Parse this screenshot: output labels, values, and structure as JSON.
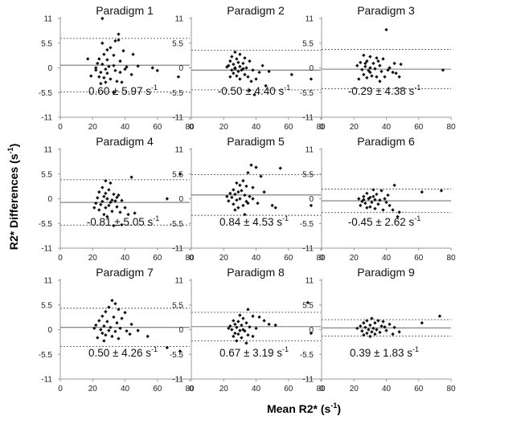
{
  "figure": {
    "ylabel_main": "R2* Differences (s",
    "ylabel_sup": "-1",
    "ylabel_close": ")",
    "xlabel_main": "Mean R2* (s",
    "xlabel_sup": "-1",
    "xlabel_close": ")"
  },
  "chart_data": [
    {
      "type": "scatter",
      "title": "Paradigm 1",
      "annotation": "0.60 ± 5.97 s",
      "annotation_unit_sup": "-1",
      "mean": 0.6,
      "upper": 6.57,
      "lower": -5.37,
      "xlim": [
        0,
        80
      ],
      "ylim": [
        -11,
        11
      ],
      "xticks": [
        "0",
        "20",
        "40",
        "60",
        "80"
      ],
      "yticks": [
        "11",
        "5.5",
        "0",
        "-5.5",
        "-11"
      ],
      "points": [
        [
          26,
          11
        ],
        [
          36,
          7.5
        ],
        [
          34,
          6
        ],
        [
          36,
          6.2
        ],
        [
          26,
          5.5
        ],
        [
          31,
          4.5
        ],
        [
          29,
          4
        ],
        [
          39,
          3.8
        ],
        [
          27,
          3
        ],
        [
          33,
          2.8
        ],
        [
          45,
          3
        ],
        [
          17,
          2
        ],
        [
          24,
          2
        ],
        [
          29,
          1.8
        ],
        [
          37,
          1.5
        ],
        [
          23,
          1
        ],
        [
          26,
          0.8
        ],
        [
          33,
          0.5
        ],
        [
          41,
          0.2
        ],
        [
          48,
          0.4
        ],
        [
          57,
          0
        ],
        [
          22,
          0
        ],
        [
          28,
          -0.3
        ],
        [
          34,
          -0.6
        ],
        [
          25,
          -1
        ],
        [
          29,
          -1.2
        ],
        [
          37,
          -1
        ],
        [
          60,
          -0.6
        ],
        [
          24,
          -2
        ],
        [
          27,
          -2.2
        ],
        [
          31,
          -2.5
        ],
        [
          35,
          -3
        ],
        [
          38,
          -3.2
        ],
        [
          25,
          -3.5
        ],
        [
          28,
          -3.2
        ],
        [
          73,
          -2
        ],
        [
          33,
          -5.5
        ],
        [
          22,
          -0.5
        ],
        [
          30,
          0.3
        ],
        [
          40,
          -0.3
        ],
        [
          44,
          -1.5
        ],
        [
          19,
          -1.8
        ]
      ]
    },
    {
      "type": "scatter",
      "title": "Paradigm 2",
      "annotation": "-0.50 ± 4.40 s",
      "annotation_unit_sup": "-1",
      "mean": -0.5,
      "upper": 3.9,
      "lower": -4.9,
      "xlim": [
        0,
        80
      ],
      "ylim": [
        -11,
        11
      ],
      "xticks": [
        "0",
        "20",
        "40",
        "60",
        "80"
      ],
      "yticks": [
        "11",
        "5.5",
        "0",
        "-5.5",
        "-11"
      ],
      "points": [
        [
          27,
          3.5
        ],
        [
          30,
          3
        ],
        [
          25,
          2.5
        ],
        [
          28,
          2
        ],
        [
          33,
          2.2
        ],
        [
          24,
          1.5
        ],
        [
          29,
          1.2
        ],
        [
          32,
          1
        ],
        [
          36,
          1.5
        ],
        [
          26,
          0.8
        ],
        [
          23,
          0.5
        ],
        [
          30,
          0.3
        ],
        [
          34,
          0
        ],
        [
          27,
          -0.2
        ],
        [
          25,
          -0.5
        ],
        [
          31,
          -0.5
        ],
        [
          29,
          -0.8
        ],
        [
          38,
          -0.5
        ],
        [
          42,
          -1
        ],
        [
          26,
          -1.2
        ],
        [
          33,
          -1.5
        ],
        [
          28,
          -1.8
        ],
        [
          35,
          -2
        ],
        [
          24,
          -2
        ],
        [
          30,
          -2.5
        ],
        [
          40,
          -2.5
        ],
        [
          37,
          -3
        ],
        [
          46,
          -4
        ],
        [
          62,
          -1.5
        ],
        [
          74,
          -2.5
        ],
        [
          39,
          -6
        ],
        [
          36,
          -5
        ],
        [
          27,
          0
        ],
        [
          22,
          0.2
        ],
        [
          32,
          -0.2
        ],
        [
          44,
          0.5
        ],
        [
          48,
          -0.8
        ]
      ]
    },
    {
      "type": "scatter",
      "title": "Paradigm 3",
      "annotation": "-0.29 ± 4.38 s",
      "annotation_unit_sup": "-1",
      "mean": -0.29,
      "upper": 4.09,
      "lower": -4.67,
      "xlim": [
        0,
        80
      ],
      "ylim": [
        -11,
        11
      ],
      "xticks": [
        "0",
        "20",
        "40",
        "60",
        "80"
      ],
      "yticks": [
        "11",
        "5.5",
        "0",
        "-5.5",
        "-11"
      ],
      "points": [
        [
          40,
          8.5
        ],
        [
          26,
          2.8
        ],
        [
          30,
          2.5
        ],
        [
          34,
          2.2
        ],
        [
          38,
          2
        ],
        [
          28,
          1.5
        ],
        [
          24,
          1.2
        ],
        [
          32,
          1
        ],
        [
          45,
          1
        ],
        [
          49,
          0.8
        ],
        [
          36,
          0.5
        ],
        [
          27,
          0.3
        ],
        [
          30,
          0
        ],
        [
          33,
          -0.2
        ],
        [
          25,
          -0.4
        ],
        [
          29,
          -0.6
        ],
        [
          37,
          -0.8
        ],
        [
          41,
          -0.5
        ],
        [
          44,
          -1
        ],
        [
          46,
          -1.2
        ],
        [
          26,
          -1.5
        ],
        [
          31,
          -1.8
        ],
        [
          34,
          -2
        ],
        [
          28,
          -2.2
        ],
        [
          39,
          -2
        ],
        [
          48,
          -2
        ],
        [
          23,
          -2.5
        ],
        [
          36,
          -3
        ],
        [
          75,
          -0.5
        ],
        [
          30,
          -1
        ],
        [
          27,
          1
        ],
        [
          35,
          1.5
        ],
        [
          42,
          0
        ],
        [
          22,
          0.5
        ]
      ]
    },
    {
      "type": "scatter",
      "title": "Paradigm 4",
      "annotation": "-0.81 ± 5.05 s",
      "annotation_unit_sup": "-1",
      "mean": -0.81,
      "upper": 4.24,
      "lower": -5.86,
      "xlim": [
        0,
        80
      ],
      "ylim": [
        -11,
        11
      ],
      "xticks": [
        "0",
        "20",
        "40",
        "60",
        "80"
      ],
      "yticks": [
        "11",
        "5.5",
        "0",
        "-5.5",
        "-11"
      ],
      "points": [
        [
          74,
          5.5
        ],
        [
          44,
          4.8
        ],
        [
          28,
          4
        ],
        [
          31,
          3.5
        ],
        [
          26,
          2.5
        ],
        [
          30,
          2
        ],
        [
          24,
          1.5
        ],
        [
          28,
          1.2
        ],
        [
          33,
          1
        ],
        [
          36,
          0.8
        ],
        [
          27,
          0.5
        ],
        [
          23,
          0.2
        ],
        [
          29,
          0
        ],
        [
          32,
          -0.3
        ],
        [
          34,
          -0.5
        ],
        [
          26,
          -0.6
        ],
        [
          38,
          -0.4
        ],
        [
          66,
          0
        ],
        [
          22,
          -1
        ],
        [
          25,
          -1.3
        ],
        [
          30,
          -1.5
        ],
        [
          35,
          -1.8
        ],
        [
          28,
          -2
        ],
        [
          40,
          -2
        ],
        [
          24,
          -2.5
        ],
        [
          32,
          -2.8
        ],
        [
          37,
          -3
        ],
        [
          27,
          -3.5
        ],
        [
          42,
          -3.5
        ],
        [
          46,
          -3.2
        ],
        [
          33,
          -6
        ],
        [
          38,
          -5.8
        ],
        [
          29,
          -4
        ],
        [
          21,
          -2
        ],
        [
          31,
          -0.8
        ],
        [
          35,
          0.3
        ]
      ]
    },
    {
      "type": "scatter",
      "title": "Paradigm 5",
      "annotation": "0.84 ± 4.53 s",
      "annotation_unit_sup": "-1",
      "mean": 0.84,
      "upper": 5.37,
      "lower": -3.69,
      "xlim": [
        0,
        80
      ],
      "ylim": [
        -11,
        11
      ],
      "xticks": [
        "0",
        "20",
        "40",
        "60",
        "80"
      ],
      "yticks": [
        "11",
        "5.5",
        "0",
        "-5.5",
        "-11"
      ],
      "points": [
        [
          37,
          7.5
        ],
        [
          40,
          7
        ],
        [
          55,
          6.8
        ],
        [
          35,
          5.8
        ],
        [
          43,
          5
        ],
        [
          32,
          4
        ],
        [
          28,
          3.5
        ],
        [
          30,
          3
        ],
        [
          34,
          2.8
        ],
        [
          38,
          2.5
        ],
        [
          26,
          2
        ],
        [
          31,
          1.8
        ],
        [
          29,
          1.5
        ],
        [
          45,
          1.5
        ],
        [
          24,
          1.2
        ],
        [
          27,
          1
        ],
        [
          33,
          0.8
        ],
        [
          36,
          0.5
        ],
        [
          25,
          0.3
        ],
        [
          30,
          0
        ],
        [
          28,
          -0.3
        ],
        [
          23,
          -0.5
        ],
        [
          34,
          -0.6
        ],
        [
          41,
          -1
        ],
        [
          26,
          -1.2
        ],
        [
          32,
          -1.5
        ],
        [
          29,
          -2
        ],
        [
          50,
          -1.5
        ],
        [
          52,
          -2
        ],
        [
          74,
          -1.5
        ],
        [
          33,
          -3.5
        ],
        [
          27,
          -2.5
        ],
        [
          38,
          0
        ],
        [
          22,
          0.5
        ],
        [
          35,
          -1
        ]
      ]
    },
    {
      "type": "scatter",
      "title": "Paradigm 6",
      "annotation": "-0.45 ± 2.62 s",
      "annotation_unit_sup": "-1",
      "mean": -0.45,
      "upper": 2.17,
      "lower": -3.07,
      "xlim": [
        0,
        80
      ],
      "ylim": [
        -11,
        11
      ],
      "xticks": [
        "0",
        "20",
        "40",
        "60",
        "80"
      ],
      "yticks": [
        "11",
        "5.5",
        "0",
        "-5.5",
        "-11"
      ],
      "points": [
        [
          45,
          3
        ],
        [
          32,
          2
        ],
        [
          37,
          1.8
        ],
        [
          62,
          1.5
        ],
        [
          74,
          1.8
        ],
        [
          28,
          1.2
        ],
        [
          34,
          1
        ],
        [
          41,
          0.8
        ],
        [
          26,
          0.5
        ],
        [
          30,
          0.3
        ],
        [
          23,
          0
        ],
        [
          29,
          0
        ],
        [
          33,
          -0.2
        ],
        [
          36,
          -0.3
        ],
        [
          39,
          0
        ],
        [
          25,
          -0.6
        ],
        [
          31,
          -0.8
        ],
        [
          27,
          -1
        ],
        [
          35,
          -1.2
        ],
        [
          42,
          -1.5
        ],
        [
          24,
          -1.5
        ],
        [
          30,
          -1.8
        ],
        [
          28,
          -2
        ],
        [
          33,
          -2.2
        ],
        [
          44,
          -2.5
        ],
        [
          38,
          -2.5
        ],
        [
          48,
          -3
        ],
        [
          47,
          -4
        ],
        [
          32,
          0.5
        ],
        [
          26,
          -0.2
        ],
        [
          40,
          -0.8
        ]
      ]
    },
    {
      "type": "scatter",
      "title": "Paradigm 7",
      "annotation": "0.50 ± 4.26 s",
      "annotation_unit_sup": "-1",
      "mean": 0.5,
      "upper": 4.76,
      "lower": -3.76,
      "xlim": [
        0,
        80
      ],
      "ylim": [
        -11,
        11
      ],
      "xticks": [
        "0",
        "20",
        "40",
        "60",
        "80"
      ],
      "yticks": [
        "11",
        "5.5",
        "0",
        "-5.5",
        "-11"
      ],
      "points": [
        [
          32,
          6.5
        ],
        [
          34,
          5.8
        ],
        [
          30,
          5
        ],
        [
          36,
          4.5
        ],
        [
          28,
          4
        ],
        [
          40,
          3.8
        ],
        [
          26,
          3
        ],
        [
          33,
          2.8
        ],
        [
          38,
          2.5
        ],
        [
          24,
          2
        ],
        [
          29,
          1.8
        ],
        [
          35,
          1.5
        ],
        [
          44,
          1.2
        ],
        [
          22,
          1
        ],
        [
          27,
          0.8
        ],
        [
          31,
          0.5
        ],
        [
          37,
          0.3
        ],
        [
          25,
          0
        ],
        [
          30,
          -0.2
        ],
        [
          34,
          -0.4
        ],
        [
          41,
          -0.3
        ],
        [
          48,
          -0.2
        ],
        [
          26,
          -0.8
        ],
        [
          28,
          -1.2
        ],
        [
          32,
          -1.5
        ],
        [
          23,
          -1.8
        ],
        [
          36,
          -2
        ],
        [
          27,
          -2.5
        ],
        [
          43,
          -1
        ],
        [
          54,
          -1.5
        ],
        [
          66,
          -4
        ],
        [
          74,
          -4.8
        ],
        [
          21,
          0.3
        ]
      ]
    },
    {
      "type": "scatter",
      "title": "Paradigm 8",
      "annotation": "0.67 ± 3.19 s",
      "annotation_unit_sup": "-1",
      "mean": 0.67,
      "upper": 3.86,
      "lower": -2.52,
      "xlim": [
        0,
        80
      ],
      "ylim": [
        -11,
        11
      ],
      "xticks": [
        "0",
        "20",
        "40",
        "60",
        "80"
      ],
      "yticks": [
        "11",
        "5.5",
        "0",
        "-5.5",
        "-11"
      ],
      "points": [
        [
          72,
          6
        ],
        [
          35,
          4.5
        ],
        [
          30,
          3.2
        ],
        [
          38,
          3
        ],
        [
          32,
          2.5
        ],
        [
          42,
          2.8
        ],
        [
          26,
          2
        ],
        [
          29,
          1.8
        ],
        [
          45,
          2
        ],
        [
          34,
          1.5
        ],
        [
          27,
          1.2
        ],
        [
          31,
          1
        ],
        [
          48,
          1.2
        ],
        [
          24,
          0.8
        ],
        [
          28,
          0.5
        ],
        [
          36,
          0.6
        ],
        [
          40,
          0.3
        ],
        [
          52,
          1
        ],
        [
          25,
          0
        ],
        [
          30,
          -0.2
        ],
        [
          33,
          -0.3
        ],
        [
          27,
          -0.8
        ],
        [
          29,
          -1
        ],
        [
          35,
          -1.2
        ],
        [
          26,
          -1.5
        ],
        [
          31,
          -1.8
        ],
        [
          38,
          -1.5
        ],
        [
          28,
          -2.5
        ],
        [
          34,
          -3
        ],
        [
          74,
          -0.8
        ],
        [
          23,
          0.3
        ],
        [
          32,
          0
        ]
      ]
    },
    {
      "type": "scatter",
      "title": "Paradigm 9",
      "annotation": "0.39 ± 1.83 s",
      "annotation_unit_sup": "-1",
      "mean": 0.39,
      "upper": 2.22,
      "lower": -1.44,
      "xlim": [
        0,
        80
      ],
      "ylim": [
        -11,
        11
      ],
      "xticks": [
        "0",
        "20",
        "40",
        "60",
        "80"
      ],
      "yticks": [
        "11",
        "5.5",
        "0",
        "-5.5",
        "-11"
      ],
      "points": [
        [
          73,
          3
        ],
        [
          31,
          2.5
        ],
        [
          28,
          2
        ],
        [
          35,
          2
        ],
        [
          38,
          1.8
        ],
        [
          26,
          1.5
        ],
        [
          33,
          1.5
        ],
        [
          42,
          1.2
        ],
        [
          30,
          1
        ],
        [
          24,
          0.8
        ],
        [
          37,
          0.8
        ],
        [
          45,
          0.5
        ],
        [
          27,
          0.5
        ],
        [
          32,
          0.3
        ],
        [
          29,
          0
        ],
        [
          34,
          0
        ],
        [
          40,
          -0.2
        ],
        [
          25,
          -0.3
        ],
        [
          31,
          -0.5
        ],
        [
          36,
          -0.6
        ],
        [
          28,
          -0.8
        ],
        [
          48,
          -0.5
        ],
        [
          33,
          -1
        ],
        [
          26,
          -1.2
        ],
        [
          30,
          -1.5
        ],
        [
          44,
          -1
        ],
        [
          62,
          1.5
        ],
        [
          22,
          0.3
        ],
        [
          39,
          0.6
        ]
      ]
    }
  ]
}
